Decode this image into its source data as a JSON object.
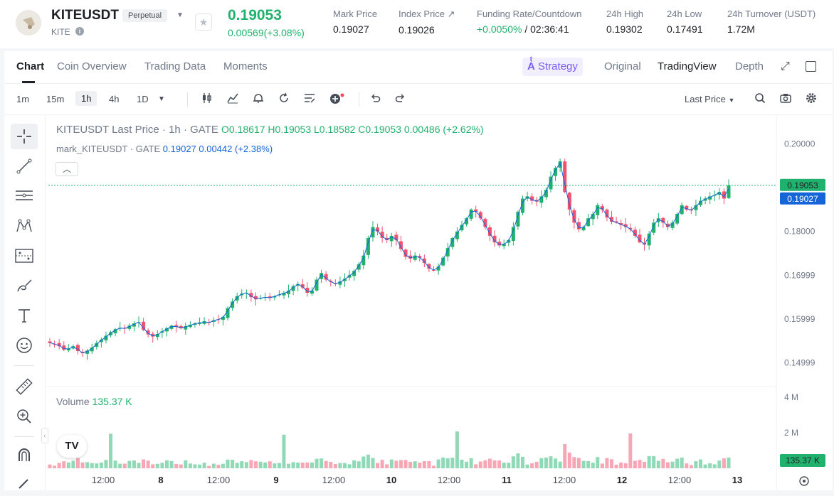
{
  "header": {
    "symbol": "KITEUSDT",
    "badge": "Perpetual",
    "sub_symbol": "KITE",
    "last_price": "0.19053",
    "change": "0.00569(+3.08%)",
    "stats": [
      {
        "label": "Mark Price",
        "value": "0.19027"
      },
      {
        "label": "Index Price ↗",
        "value": "0.19026"
      },
      {
        "label": "Funding Rate/Countdown",
        "value_green": "+0.0050%",
        "value": " / 02:36:41"
      },
      {
        "label": "24h High",
        "value": "0.19302"
      },
      {
        "label": "24h Low",
        "value": "0.17491"
      },
      {
        "label": "24h Turnover (USDT)",
        "value": "1.72M"
      }
    ]
  },
  "tabs": [
    "Chart",
    "Coin Overview",
    "Trading Data",
    "Moments"
  ],
  "view_tabs": {
    "strategy": "Strategy",
    "original": "Original",
    "tradingview": "TradingView",
    "depth": "Depth"
  },
  "intervals": [
    "1m",
    "15m",
    "1h",
    "4h",
    "1D"
  ],
  "active_interval": "1h",
  "price_type": "Last Price",
  "legend": {
    "title": "KITEUSDT Last Price · 1h · GATE",
    "ohlc": "O0.18617 H0.19053 L0.18582 C0.19053 0.00486 (+2.62%)",
    "mark_label": "mark_KITEUSDT · GATE",
    "mark_values": "0.19027 0.00442 (+2.38%)"
  },
  "volume": {
    "label": "Volume",
    "value": "135.37 K"
  },
  "colors": {
    "up": "#20b26c",
    "down": "#ef5370",
    "up_vol": "#8fd9b6",
    "down_vol": "#f7a6b5",
    "mark_line": "#1565d8"
  },
  "chart_data": {
    "type": "candlestick",
    "title": "KITEUSDT Last Price · 1h · GATE",
    "y_ticks": [
      "0.20000",
      "0.18000",
      "0.16999",
      "0.15999",
      "0.14999"
    ],
    "ylim": [
      0.1467,
      0.2012
    ],
    "x_ticks": [
      "12:00",
      "8",
      "12:00",
      "9",
      "12:00",
      "10",
      "12:00",
      "11",
      "12:00",
      "12",
      "12:00",
      "13"
    ],
    "last_price_tag": "0.19053",
    "mark_price_tag": "0.19027",
    "volume_ticks": [
      "4 M",
      "2 M"
    ],
    "volume_tag": "135.37 K",
    "close_path": [
      0.1545,
      0.1543,
      0.1538,
      0.153,
      0.1533,
      0.1538,
      0.1527,
      0.1522,
      0.1528,
      0.1535,
      0.1545,
      0.1553,
      0.1562,
      0.157,
      0.1577,
      0.158,
      0.1578,
      0.1585,
      0.159,
      0.1593,
      0.1575,
      0.1565,
      0.156,
      0.1566,
      0.1572,
      0.1579,
      0.1585,
      0.1582,
      0.1579,
      0.1584,
      0.1587,
      0.159,
      0.1592,
      0.1595,
      0.1592,
      0.1597,
      0.1599,
      0.1605,
      0.1625,
      0.164,
      0.1652,
      0.1658,
      0.166,
      0.165,
      0.1645,
      0.1648,
      0.165,
      0.1648,
      0.1652,
      0.1656,
      0.166,
      0.1665,
      0.1675,
      0.168,
      0.1672,
      0.166,
      0.1665,
      0.169,
      0.1705,
      0.169,
      0.1685,
      0.168,
      0.1686,
      0.1692,
      0.17,
      0.171,
      0.1725,
      0.1745,
      0.1785,
      0.181,
      0.18,
      0.1785,
      0.178,
      0.179,
      0.178,
      0.176,
      0.1742,
      0.1738,
      0.1745,
      0.174,
      0.1728,
      0.1715,
      0.1712,
      0.172,
      0.174,
      0.1762,
      0.1785,
      0.18,
      0.1815,
      0.183,
      0.185,
      0.1845,
      0.183,
      0.181,
      0.179,
      0.1775,
      0.1768,
      0.1772,
      0.178,
      0.181,
      0.1845,
      0.1875,
      0.188,
      0.187,
      0.1868,
      0.188,
      0.1895,
      0.1925,
      0.1945,
      0.196,
      0.189,
      0.185,
      0.182,
      0.1805,
      0.181,
      0.183,
      0.184,
      0.186,
      0.185,
      0.1832,
      0.1822,
      0.182,
      0.1815,
      0.181,
      0.1805,
      0.179,
      0.1775,
      0.177,
      0.1795,
      0.182,
      0.183,
      0.182,
      0.181,
      0.182,
      0.184,
      0.186,
      0.185,
      0.1848,
      0.186,
      0.187,
      0.1875,
      0.188,
      0.1883,
      0.189,
      0.1875,
      0.1905
    ]
  }
}
